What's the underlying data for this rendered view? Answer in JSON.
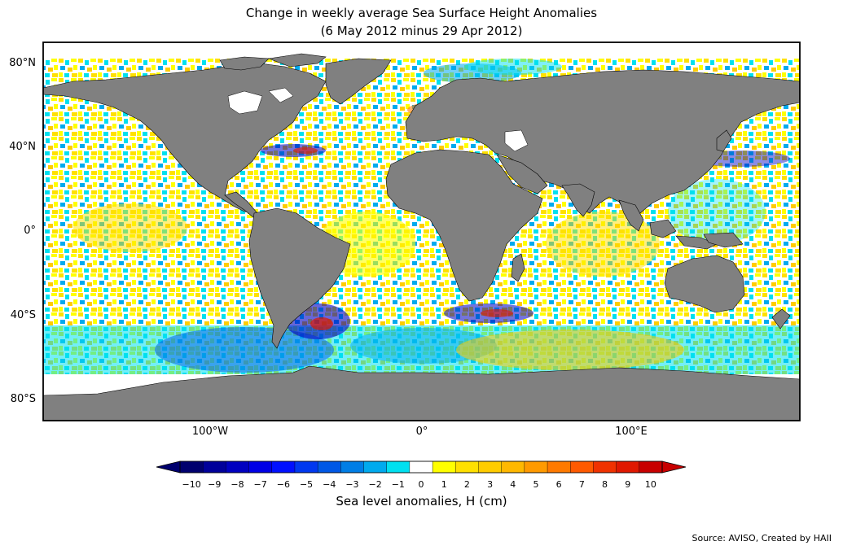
{
  "title_line1": "Change in weekly average Sea Surface Height Anomalies",
  "title_line2": "(6 May 2012 minus 29 Apr 2012)",
  "lat_labels": [
    "80°N",
    "40°N",
    "0°",
    "40°S",
    "80°S"
  ],
  "lon_labels": [
    "100°W",
    "0°",
    "100°E"
  ],
  "colorbar": {
    "ticks": [
      "−10",
      "−9",
      "−8",
      "−7",
      "−6",
      "−5",
      "−4",
      "−3",
      "−2",
      "−1",
      "0",
      "1",
      "2",
      "3",
      "4",
      "5",
      "6",
      "7",
      "8",
      "9",
      "10"
    ],
    "colors": [
      "#00006e",
      "#00009a",
      "#0000c0",
      "#0000e6",
      "#0010ff",
      "#0038f0",
      "#0058e6",
      "#007ee6",
      "#00aaee",
      "#00e0f0",
      "#ffffff",
      "#ffff00",
      "#ffe000",
      "#ffcc00",
      "#ffb800",
      "#ff9a00",
      "#ff7a00",
      "#ff5a00",
      "#f03200",
      "#e01800",
      "#c80000"
    ],
    "label": "Sea level anomalies, H (cm)"
  },
  "source": "Source: AVISO, Created by HAII",
  "map_colors": {
    "land": "#808080",
    "ice_white": "#ffffff",
    "ocean_bg": "#ffffff"
  }
}
